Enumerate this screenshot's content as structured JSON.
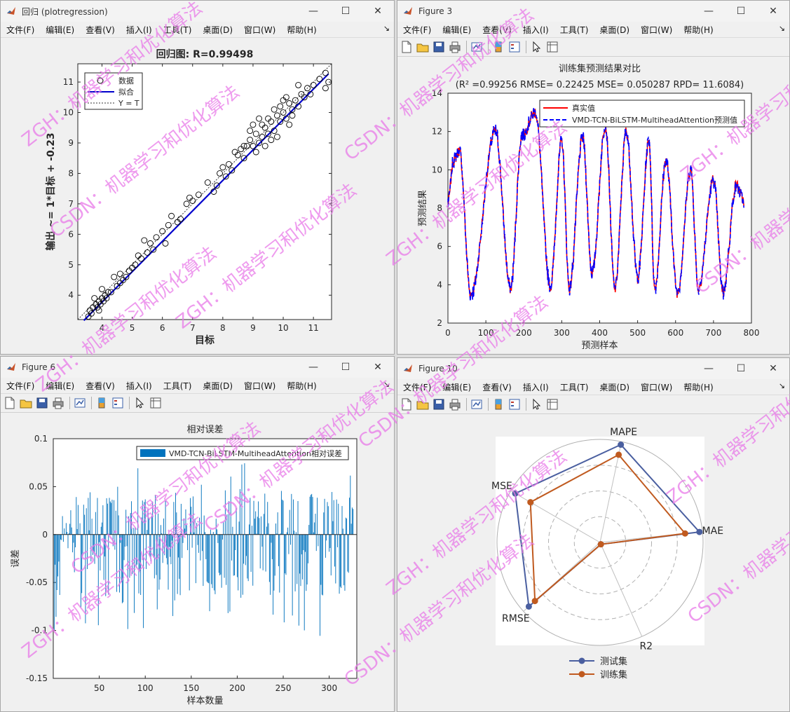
{
  "windows": {
    "regression": {
      "title": "回归 (plotregression)",
      "menu": [
        "文件(F)",
        "编辑(E)",
        "查看(V)",
        "插入(I)",
        "工具(T)",
        "桌面(D)",
        "窗口(W)",
        "帮助(H)"
      ]
    },
    "fig3": {
      "title": "Figure 3",
      "menu": [
        "文件(F)",
        "编辑(E)",
        "查看(V)",
        "插入(I)",
        "工具(T)",
        "桌面(D)",
        "窗口(W)",
        "帮助(H)"
      ]
    },
    "fig6": {
      "title": "Figure 6",
      "menu": [
        "文件(F)",
        "编辑(E)",
        "查看(V)",
        "插入(I)",
        "工具(T)",
        "桌面(D)",
        "窗口(W)",
        "帮助(H)"
      ]
    },
    "fig10": {
      "title": "Figure 10",
      "menu": [
        "文件(F)",
        "编辑(E)",
        "查看(V)",
        "插入(I)",
        "工具(T)",
        "桌面(D)",
        "窗口(W)",
        "帮助(H)"
      ]
    }
  },
  "window_controls": {
    "minimize": "—",
    "maximize": "☐",
    "close": "✕"
  },
  "menu_overflow": "↘",
  "toolbar_icons": [
    "new-file-icon",
    "open-folder-icon",
    "save-icon",
    "print-icon",
    "link-plot-icon",
    "colorbar-icon",
    "legend-icon",
    "pointer-icon",
    "property-inspector-icon"
  ],
  "watermark": {
    "lines": [
      "ZGH：机器学习和优化算法",
      "CSDN：机器学习和优化算法"
    ],
    "color": "#e879e8"
  },
  "chart_data": [
    {
      "type": "scatter",
      "id": "regression",
      "title": "回归图: R=0.99498",
      "xlabel": "目标",
      "ylabel": "输出 ~= 1*目标 + -0.23",
      "xlim": [
        3.2,
        11.6
      ],
      "ylim": [
        3.2,
        11.6
      ],
      "xticks": [
        4,
        5,
        6,
        7,
        8,
        9,
        10,
        11
      ],
      "yticks": [
        4,
        5,
        6,
        7,
        8,
        9,
        10,
        11
      ],
      "legend": [
        "数据",
        "拟合",
        "Y = T"
      ],
      "legend_position": "top-left",
      "fit_line": {
        "slope": 1,
        "intercept": -0.23
      },
      "points": [
        [
          3.6,
          3.5
        ],
        [
          3.7,
          3.6
        ],
        [
          3.8,
          3.7
        ],
        [
          3.9,
          3.8
        ],
        [
          4.0,
          3.9
        ],
        [
          4.1,
          4.0
        ],
        [
          4.2,
          4.1
        ],
        [
          3.65,
          3.4
        ],
        [
          3.75,
          3.9
        ],
        [
          3.85,
          3.6
        ],
        [
          3.95,
          3.7
        ],
        [
          4.05,
          3.8
        ],
        [
          3.55,
          3.3
        ],
        [
          4.15,
          3.9
        ],
        [
          4.3,
          4.1
        ],
        [
          4.5,
          4.3
        ],
        [
          4.6,
          4.7
        ],
        [
          4.7,
          4.5
        ],
        [
          4.8,
          4.6
        ],
        [
          4.9,
          4.8
        ],
        [
          5.0,
          4.9
        ],
        [
          5.1,
          5.0
        ],
        [
          5.2,
          5.3
        ],
        [
          5.3,
          5.2
        ],
        [
          5.5,
          5.4
        ],
        [
          5.6,
          5.7
        ],
        [
          5.8,
          5.9
        ],
        [
          6.0,
          6.1
        ],
        [
          6.2,
          6.3
        ],
        [
          6.3,
          6.6
        ],
        [
          6.5,
          6.4
        ],
        [
          6.6,
          6.5
        ],
        [
          6.8,
          7.0
        ],
        [
          7.0,
          7.1
        ],
        [
          7.2,
          7.3
        ],
        [
          7.5,
          7.7
        ],
        [
          7.7,
          7.4
        ],
        [
          7.9,
          8.0
        ],
        [
          8.0,
          8.2
        ],
        [
          8.2,
          8.3
        ],
        [
          8.3,
          8.1
        ],
        [
          8.5,
          8.6
        ],
        [
          8.6,
          8.8
        ],
        [
          8.7,
          8.5
        ],
        [
          8.8,
          8.9
        ],
        [
          9.0,
          8.9
        ],
        [
          9.1,
          9.3
        ],
        [
          9.2,
          9.0
        ],
        [
          9.3,
          9.2
        ],
        [
          9.4,
          9.5
        ],
        [
          9.5,
          9.3
        ],
        [
          9.6,
          9.7
        ],
        [
          9.7,
          9.4
        ],
        [
          9.8,
          9.9
        ],
        [
          9.9,
          9.7
        ],
        [
          10.0,
          10.0
        ],
        [
          10.1,
          9.8
        ],
        [
          10.2,
          10.3
        ],
        [
          10.3,
          10.1
        ],
        [
          10.4,
          10.4
        ],
        [
          10.5,
          10.2
        ],
        [
          10.6,
          10.6
        ],
        [
          10.7,
          10.5
        ],
        [
          10.8,
          10.8
        ],
        [
          11.0,
          10.9
        ],
        [
          11.2,
          11.1
        ],
        [
          11.4,
          11.3
        ],
        [
          9.0,
          9.6
        ],
        [
          9.2,
          9.8
        ],
        [
          8.9,
          9.4
        ],
        [
          9.4,
          8.9
        ],
        [
          9.6,
          9.1
        ],
        [
          10.2,
          9.6
        ],
        [
          9.8,
          9.2
        ],
        [
          10.5,
          10.9
        ],
        [
          11.5,
          11.0
        ],
        [
          11.4,
          10.8
        ],
        [
          5.4,
          5.8
        ],
        [
          6.1,
          5.7
        ],
        [
          7.8,
          7.6
        ],
        [
          8.4,
          8.7
        ],
        [
          9.1,
          8.7
        ],
        [
          10.9,
          10.6
        ],
        [
          4.4,
          4.6
        ],
        [
          4.0,
          4.2
        ],
        [
          3.9,
          3.5
        ],
        [
          4.6,
          4.4
        ],
        [
          5.7,
          5.5
        ],
        [
          6.9,
          7.2
        ],
        [
          8.1,
          7.9
        ],
        [
          8.9,
          9.1
        ],
        [
          9.5,
          9.8
        ],
        [
          10.0,
          10.4
        ],
        [
          10.3,
          9.9
        ],
        [
          9.7,
          10.1
        ],
        [
          10.1,
          10.5
        ],
        [
          9.3,
          9.6
        ],
        [
          8.7,
          8.9
        ],
        [
          9.9,
          10.2
        ]
      ]
    },
    {
      "type": "line",
      "id": "fig3",
      "title": "训练集预测结果对比",
      "subtitle": "(R² =0.99256 RMSE= 0.22425 MSE= 0.050287 RPD= 11.6084)",
      "xlabel": "预测样本",
      "ylabel": "预测结果",
      "xlim": [
        0,
        800
      ],
      "ylim": [
        2,
        14
      ],
      "xticks": [
        0,
        100,
        200,
        300,
        400,
        500,
        600,
        700,
        800
      ],
      "yticks": [
        2,
        4,
        6,
        8,
        10,
        12,
        14
      ],
      "legend": [
        "真实值",
        "VMD-TCN-BiLSTM-MultiheadAttention预测值"
      ],
      "legend_position": "top-right",
      "series_colors": [
        "#ff0000",
        "#0000ff"
      ],
      "n_samples": 780,
      "peaks": [
        [
          15,
          10.5
        ],
        [
          30,
          11.0
        ],
        [
          125,
          12.0
        ],
        [
          195,
          11.8
        ],
        [
          230,
          13.0
        ],
        [
          300,
          11.5
        ],
        [
          355,
          11.7
        ],
        [
          415,
          12.3
        ],
        [
          470,
          12.0
        ],
        [
          530,
          11.5
        ],
        [
          575,
          10.5
        ],
        [
          640,
          10.0
        ],
        [
          700,
          9.5
        ],
        [
          760,
          9.2
        ]
      ],
      "troughs": [
        [
          60,
          3.5
        ],
        [
          165,
          3.8
        ],
        [
          270,
          3.9
        ],
        [
          320,
          3.8
        ],
        [
          380,
          4.6
        ],
        [
          440,
          3.8
        ],
        [
          500,
          4.4
        ],
        [
          545,
          3.8
        ],
        [
          605,
          3.6
        ],
        [
          660,
          3.8
        ],
        [
          725,
          3.6
        ]
      ]
    },
    {
      "type": "bar",
      "id": "fig6",
      "title": "相对误差",
      "xlabel": "样本数量",
      "ylabel": "误差",
      "xlim": [
        0,
        330
      ],
      "ylim": [
        -0.15,
        0.1
      ],
      "xticks": [
        50,
        100,
        150,
        200,
        250,
        300
      ],
      "yticks": [
        -0.15,
        -0.1,
        -0.05,
        0,
        0.05,
        0.1
      ],
      "legend": [
        "VMD-TCN-BiLSTM-MultiheadAttention相对误差"
      ],
      "legend_position": "top-right",
      "color": "#0072bd",
      "n_samples": 326
    },
    {
      "type": "radar",
      "id": "fig10",
      "axes": [
        "MAPE",
        "MAE",
        "R2",
        "RMSE",
        "MSE"
      ],
      "series": [
        {
          "name": "测试集",
          "values": [
            0.97,
            0.97,
            0.02,
            0.93,
            0.95
          ],
          "color": "#4a5fa0"
        },
        {
          "name": "训练集",
          "values": [
            0.87,
            0.83,
            0.02,
            0.85,
            0.78
          ],
          "color": "#c05a1f"
        }
      ],
      "legend_position": "bottom"
    }
  ]
}
